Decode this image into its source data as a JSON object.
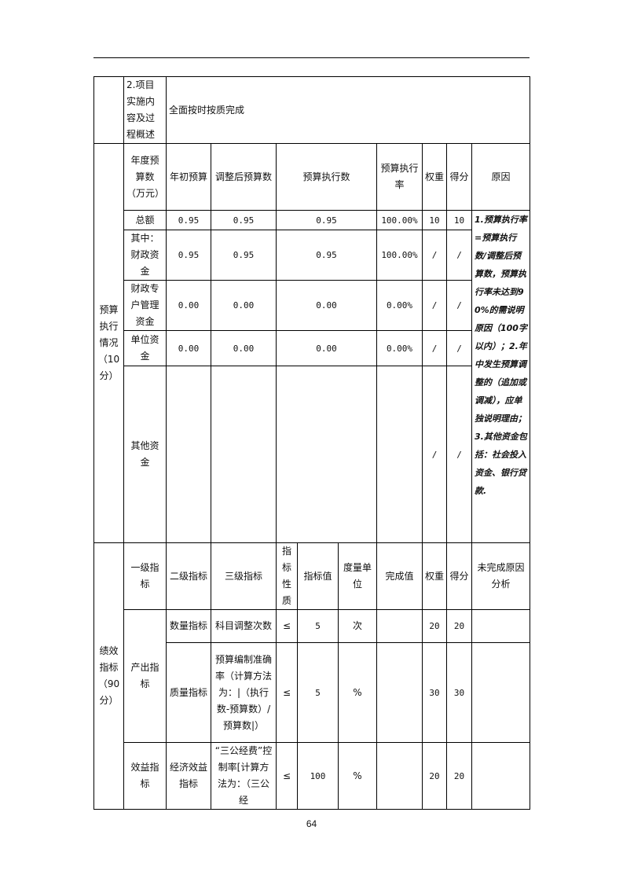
{
  "row_overview": {
    "label": "2.项目实施内容及过程概述",
    "content": "全面按时按质完成"
  },
  "budget": {
    "section_label": "预算执行情况（10分）",
    "headers": [
      "年度预算数（万元）",
      "年初预算",
      "调整后预算数",
      "预算执行数",
      "预算执行率",
      "权重",
      "得分",
      "原因"
    ],
    "rows": [
      {
        "name": "总额",
        "initial": "0.95",
        "adjusted": "0.95",
        "executed": "0.95",
        "rate": "100.00%",
        "weight": "10",
        "score": "10"
      },
      {
        "name": "其中：财政资金",
        "initial": "0.95",
        "adjusted": "0.95",
        "executed": "0.95",
        "rate": "100.00%",
        "weight": "/",
        "score": "/"
      },
      {
        "name": "财政专户管理资金",
        "initial": "0.00",
        "adjusted": "0.00",
        "executed": "0.00",
        "rate": "0.00%",
        "weight": "/",
        "score": "/"
      },
      {
        "name": "单位资金",
        "initial": "0.00",
        "adjusted": "0.00",
        "executed": "0.00",
        "rate": "0.00%",
        "weight": "/",
        "score": "/"
      },
      {
        "name": "其他资金",
        "initial": "",
        "adjusted": "",
        "executed": "",
        "rate": "",
        "weight": "/",
        "score": "/"
      }
    ],
    "reason_note": "1.预算执行率=预算执行数/调整后预算数，预算执行率未达到90%的需说明原因（100字以内）；2.年中发生预算调整的（追加或调减），应单独说明理由；3.其他资金包括：社会投入资金、银行贷款."
  },
  "performance": {
    "section_label": "绩效指标（90分）",
    "headers": [
      "一级指标",
      "二级指标",
      "三级指标",
      "指标性质",
      "指标值",
      "度量单位",
      "完成值",
      "权重",
      "得分",
      "未完成原因分析"
    ],
    "rows": [
      {
        "level1": "产出指标",
        "level2": "数量指标",
        "level3": "科目调整次数",
        "nature": "≤",
        "value": "5",
        "unit": "次",
        "done": "",
        "weight": "20",
        "score": "20",
        "reason": ""
      },
      {
        "level2": "质量指标",
        "level3": "预算编制准确率（计算方法为：|（执行数-预算数）/预算数|）",
        "nature": "≤",
        "value": "5",
        "unit": "%",
        "done": "",
        "weight": "30",
        "score": "30",
        "reason": ""
      },
      {
        "level1": "效益指标",
        "level2": "经济效益指标",
        "level3": "“三公经费”控制率[计算方法为：（三公经",
        "nature": "≤",
        "value": "100",
        "unit": "%",
        "done": "",
        "weight": "20",
        "score": "20",
        "reason": ""
      }
    ]
  },
  "page_number": "64"
}
